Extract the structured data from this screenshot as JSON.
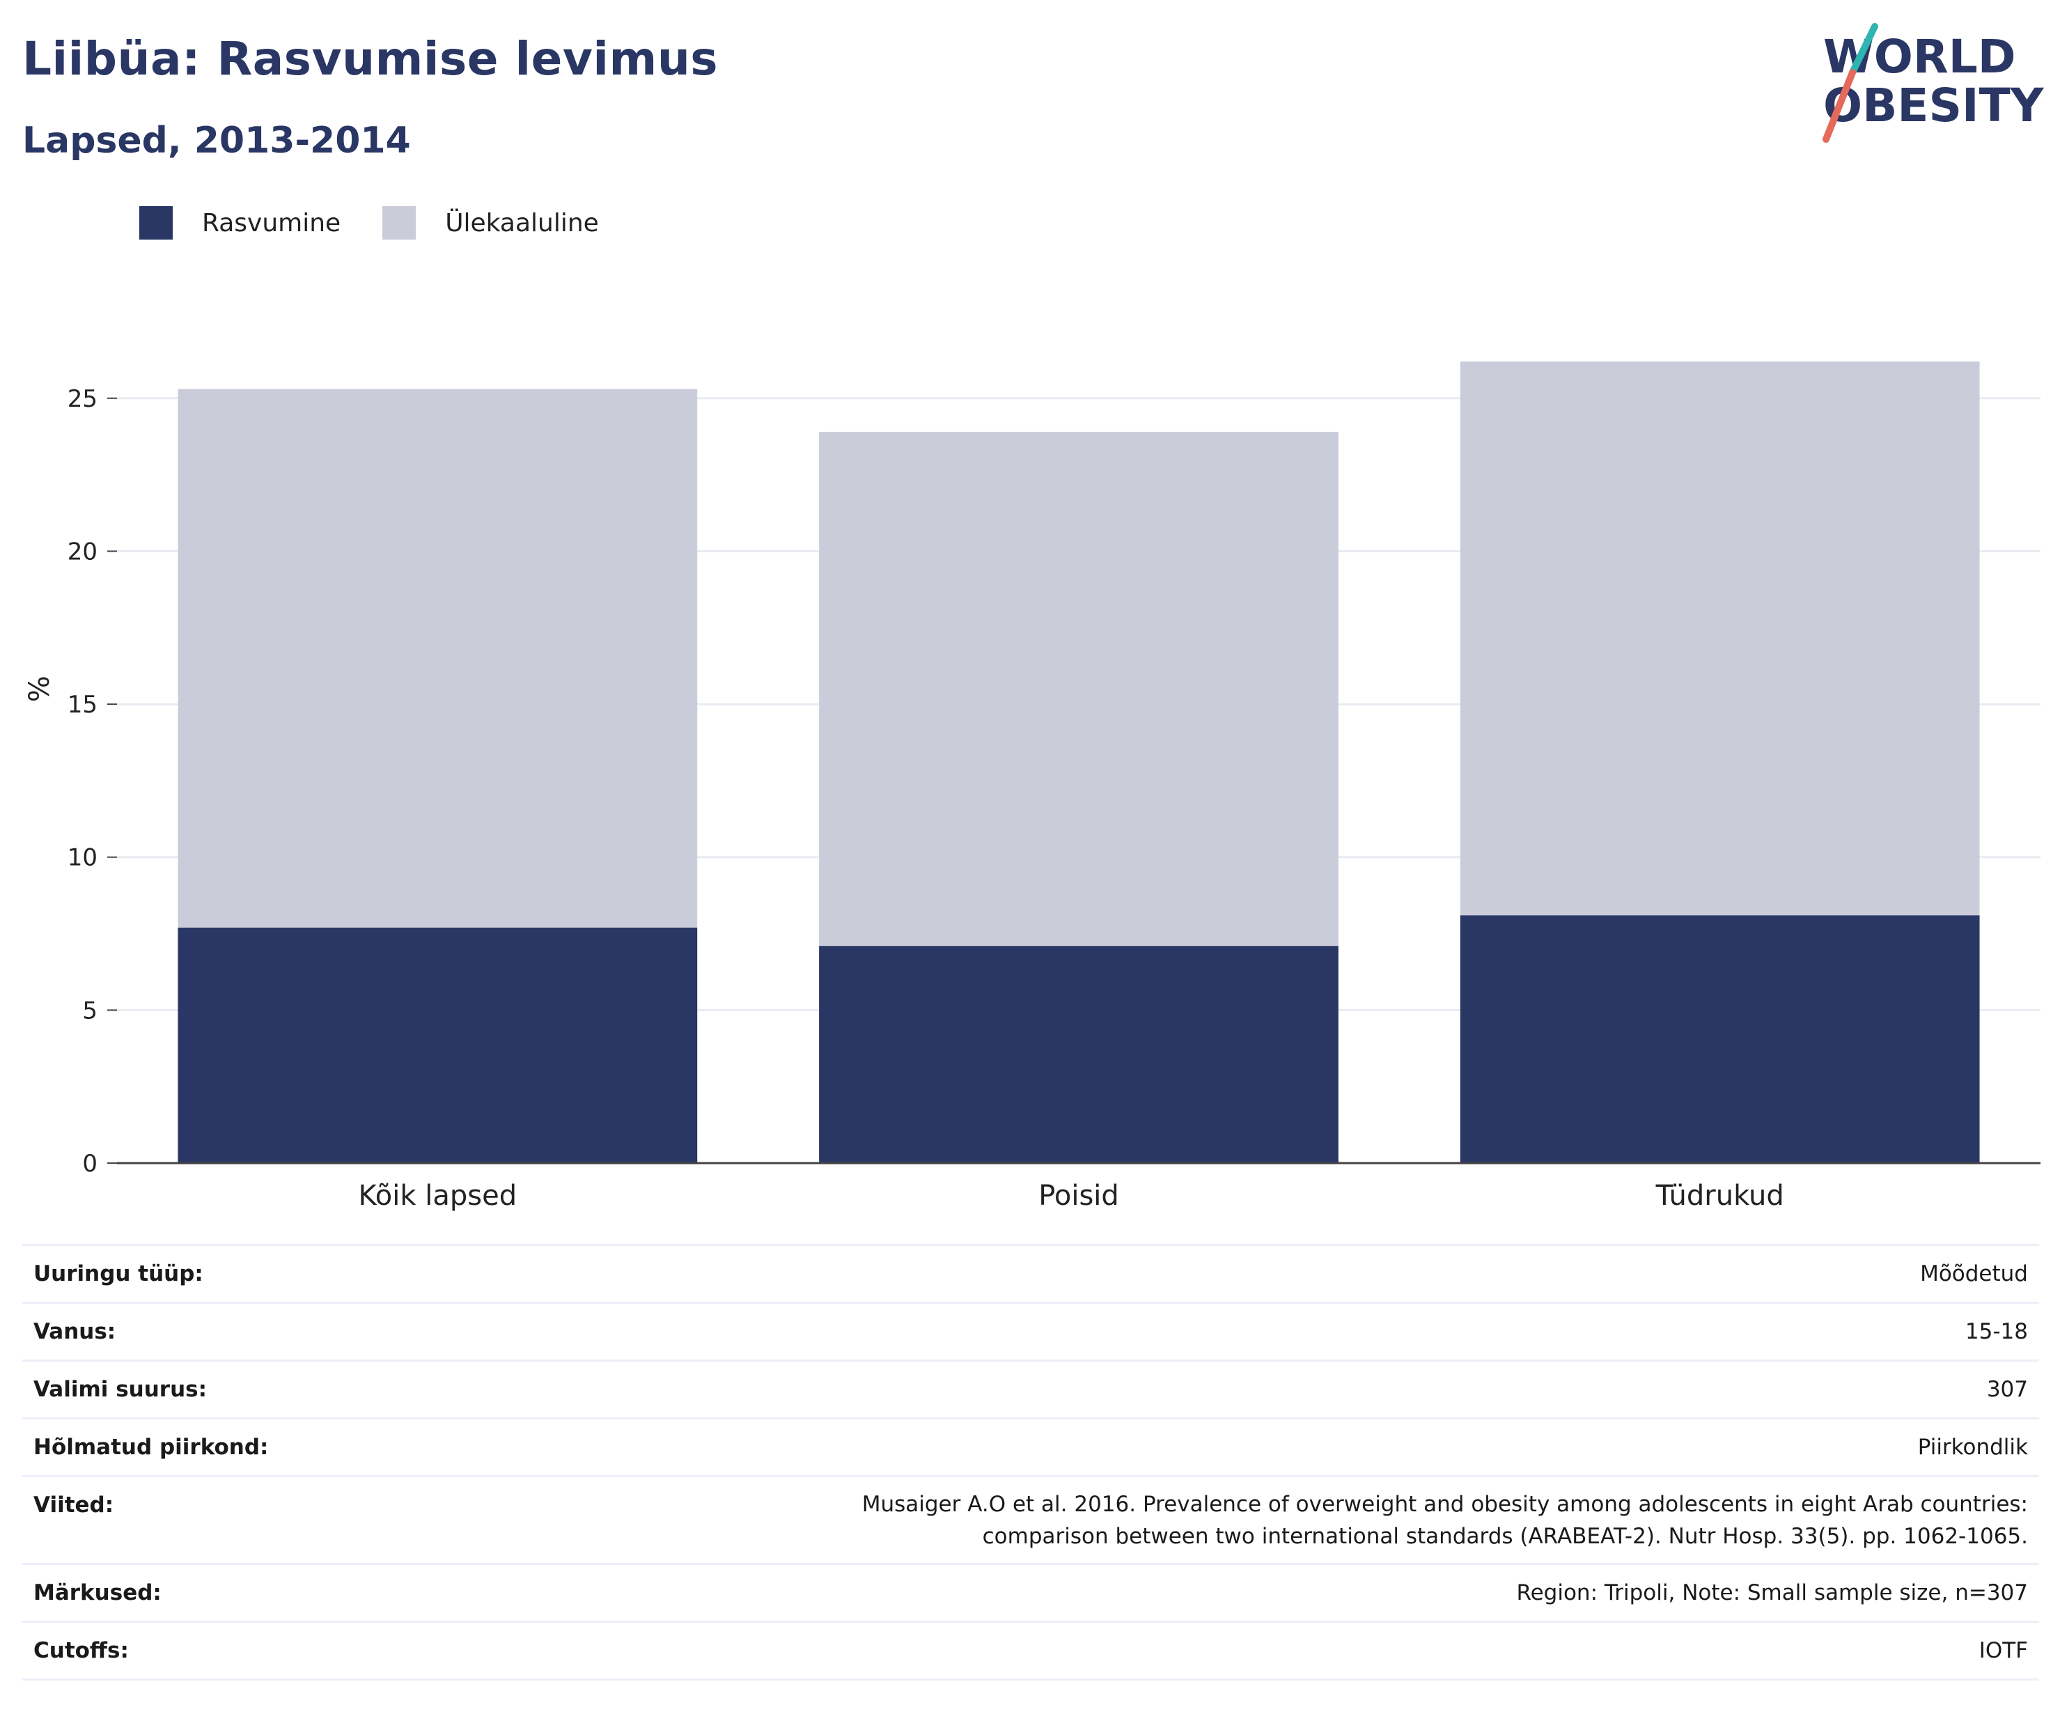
{
  "header": {
    "title": "Liibüa: Rasvumise levimus",
    "subtitle": "Lapsed, 2013-2014",
    "logo_text": "WORLD OBESITY"
  },
  "colors": {
    "title": "#2a3764",
    "obesity": "#2a3764",
    "overweight": "#cacdd9",
    "grid": "#e9ebf2",
    "logo_teal": "#2fb5b1",
    "logo_coral": "#e56a5b"
  },
  "chart_data": {
    "type": "bar",
    "stacked": true,
    "categories": [
      "Kõik lapsed",
      "Poisid",
      "Tüdrukud"
    ],
    "series": [
      {
        "name": "Rasvumine",
        "values": [
          7.7,
          7.1,
          8.1
        ]
      },
      {
        "name": "Ülekaaluline",
        "values": [
          17.6,
          16.8,
          18.1
        ]
      }
    ],
    "ylabel": "%",
    "ylim": [
      0,
      28
    ],
    "yticks": [
      0,
      5,
      10,
      15,
      20,
      25
    ],
    "grid": true,
    "legend_position": "top-left"
  },
  "info": [
    {
      "key": "Uuringu tüüp:",
      "value": "Mõõdetud"
    },
    {
      "key": "Vanus:",
      "value": "15-18"
    },
    {
      "key": "Valimi suurus:",
      "value": "307"
    },
    {
      "key": "Hõlmatud piirkond:",
      "value": "Piirkondlik"
    },
    {
      "key": "Viited:",
      "value": "Musaiger A.O et al. 2016. Prevalence of overweight and obesity among adolescents in eight Arab countries: comparison between two international standards (ARABEAT-2). Nutr Hosp. 33(5). pp. 1062-1065."
    },
    {
      "key": "Märkused:",
      "value": "Region: Tripoli, Note: Small sample size, n=307"
    },
    {
      "key": "Cutoffs:",
      "value": "IOTF"
    }
  ]
}
